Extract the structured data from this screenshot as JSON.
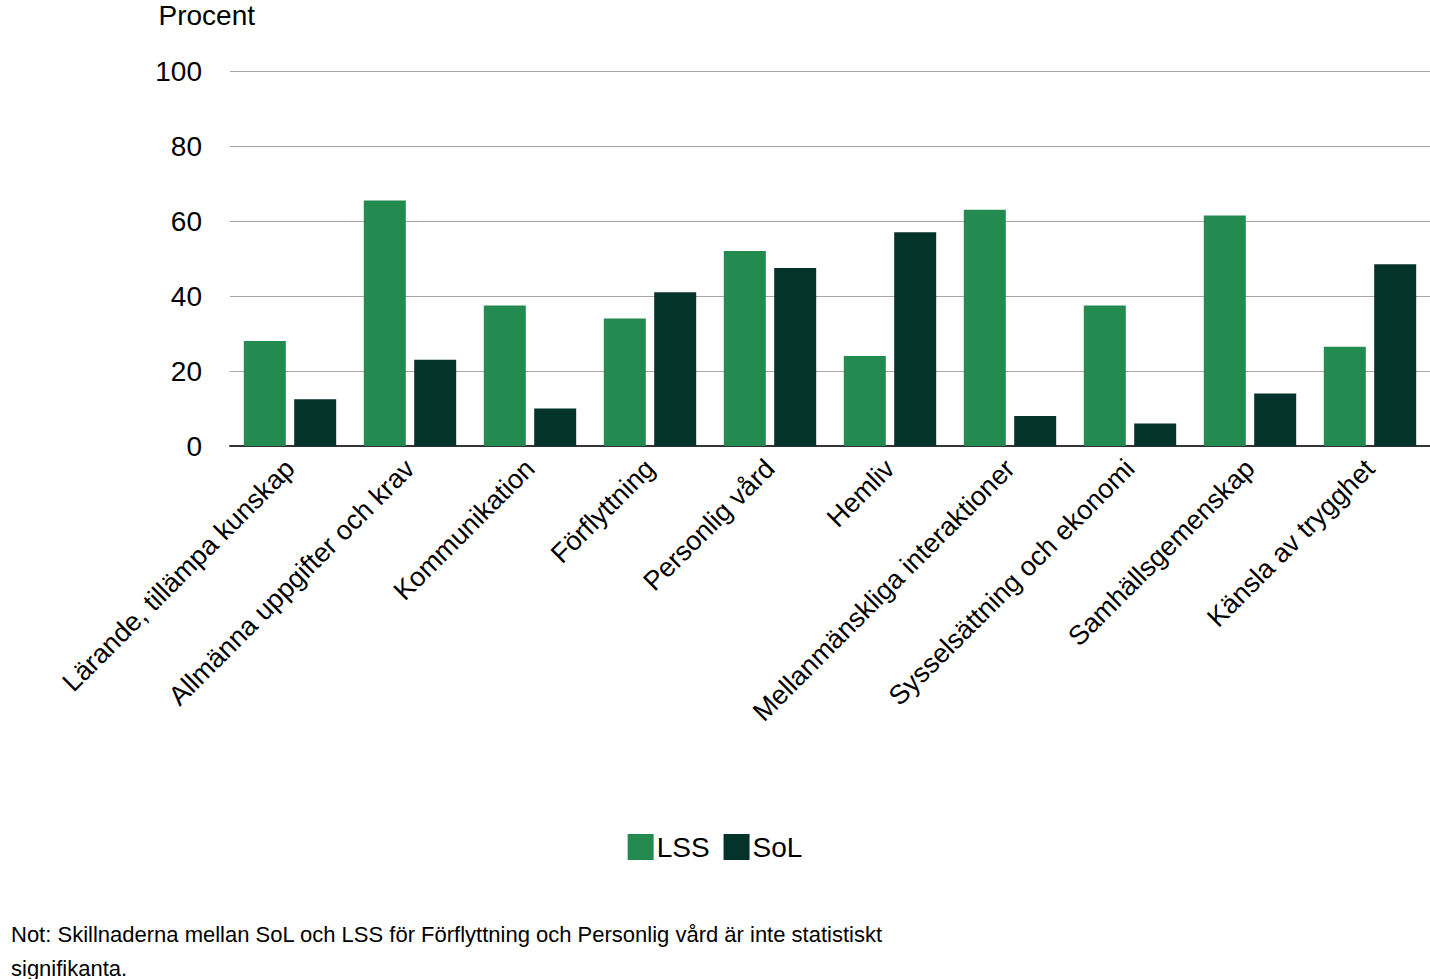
{
  "chart_data": {
    "type": "bar",
    "ylabel": "Procent",
    "categories": [
      "Lärande, tillämpa kunskap",
      "Allmänna uppgifter och krav",
      "Kommunikation",
      "Förflyttning",
      "Personlig vård",
      "Hemliv",
      "Mellanmänskliga interaktioner",
      "Sysselsättning och ekonomi",
      "Samhällsgemenskap",
      "Känsla av trygghet"
    ],
    "series": [
      {
        "name": "LSS",
        "color": "#238a50",
        "values": [
          28,
          65.5,
          37.5,
          34,
          52,
          24,
          63,
          37.5,
          61.5,
          26.5
        ]
      },
      {
        "name": "SoL",
        "color": "#03332a",
        "values": [
          12.5,
          23,
          10,
          41,
          47.5,
          57,
          8,
          6,
          14,
          48.5
        ]
      }
    ],
    "ylim": [
      0,
      100
    ],
    "yticks": [
      0,
      20,
      40,
      60,
      80,
      100
    ],
    "grid": true,
    "legend": "bottom",
    "annotations": [
      "Not: Skillnaderna mellan SoL och LSS för Förflyttning och Personlig vård är inte statistiskt signifikanta."
    ]
  }
}
